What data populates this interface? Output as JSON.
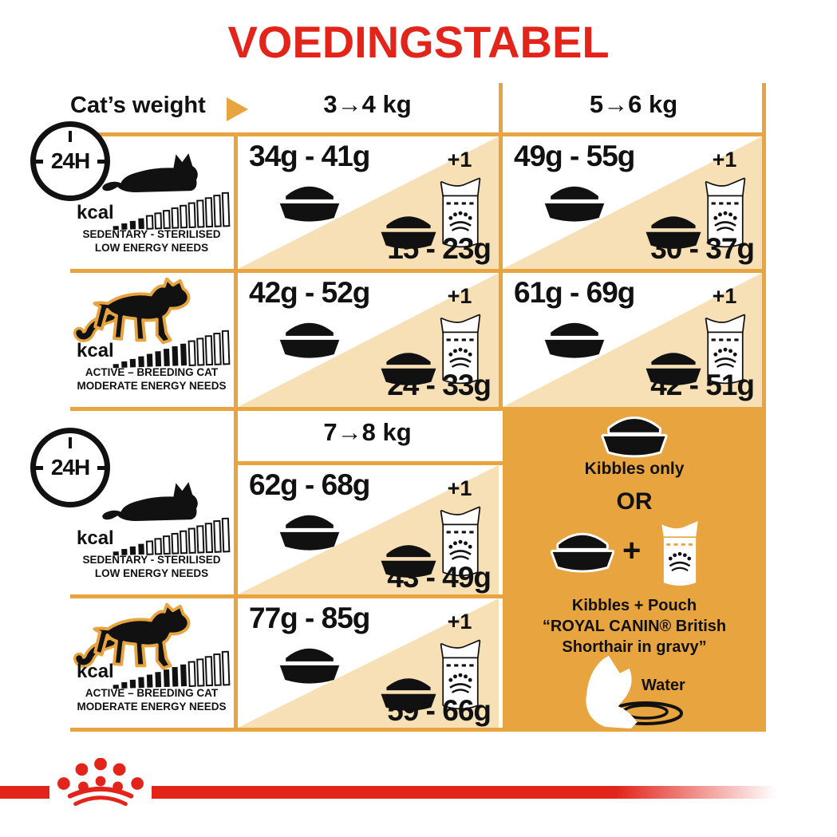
{
  "title": "VOEDINGSTABEL",
  "colors": {
    "red": "#E2241B",
    "orange": "#E8A43E",
    "beige": "#F7E0B5",
    "ink": "#111111"
  },
  "header": {
    "cats_weight": "Cat’s weight",
    "weight_1": "3→4 kg",
    "weight_2": "5→6 kg",
    "weight_3": "7→8 kg"
  },
  "clock": {
    "label": "24H"
  },
  "profiles": {
    "sedentary": {
      "kcal": "kcal",
      "line1": "SEDENTARY - STERILISED",
      "line2": "LOW ENERGY NEEDS"
    },
    "active": {
      "kcal": "kcal",
      "line1": "ACTIVE – BREEDING CAT",
      "line2": "MODERATE ENERGY NEEDS"
    }
  },
  "cells": {
    "r1c1": {
      "kibbles_only": "34g - 41g",
      "plus": "+1",
      "kibbles_mixed": "15 - 23g"
    },
    "r1c2": {
      "kibbles_only": "49g - 55g",
      "plus": "+1",
      "kibbles_mixed": "30 - 37g"
    },
    "r2c1": {
      "kibbles_only": "42g - 52g",
      "plus": "+1",
      "kibbles_mixed": "24 - 33g"
    },
    "r2c2": {
      "kibbles_only": "61g - 69g",
      "plus": "+1",
      "kibbles_mixed": "42 - 51g"
    },
    "r3c1": {
      "kibbles_only": "62g - 68g",
      "plus": "+1",
      "kibbles_mixed": "43 - 49g"
    },
    "r4c1": {
      "kibbles_only": "77g - 85g",
      "plus": "+1",
      "kibbles_mixed": "59 - 66g"
    }
  },
  "panel": {
    "kibbles_only": "Kibbles only",
    "or": "OR",
    "plus": "+",
    "pouch_line1": "Kibbles + Pouch",
    "pouch_line2": "“ROYAL CANIN® British",
    "pouch_line3": "Shorthair in gravy”",
    "water": "Water"
  }
}
